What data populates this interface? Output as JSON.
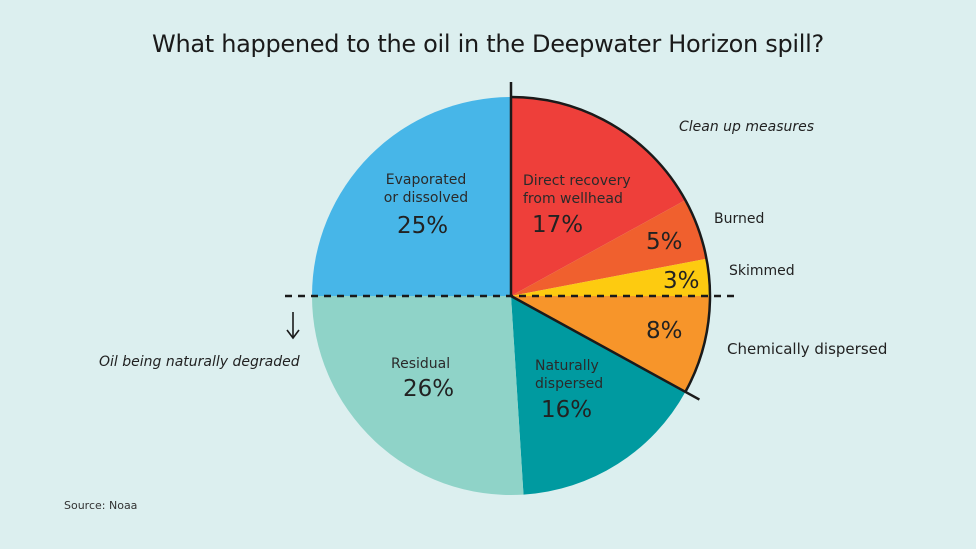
{
  "title": "What happened to the oil in the Deepwater Horizon spill?",
  "source": "Source: Noaa",
  "annotations": {
    "clean_up": "Clean up measures",
    "naturally_degraded": "Oil being naturally degraded",
    "arrow_icon": "down-arrow"
  },
  "slices": {
    "direct": {
      "label1": "Direct recovery",
      "label2": "from wellhead",
      "pct": "17%"
    },
    "burned": {
      "label": "Burned",
      "pct": "5%"
    },
    "skimmed": {
      "label": "Skimmed",
      "pct": "3%"
    },
    "chemical": {
      "label": "Chemically dispersed",
      "pct": "8%"
    },
    "natural": {
      "label1": "Naturally",
      "label2": "dispersed",
      "pct": "16%"
    },
    "residual": {
      "label": "Residual",
      "pct": "26%"
    },
    "evaporated": {
      "label1": "Evaporated",
      "label2": "or dissolved",
      "pct": "25%"
    }
  },
  "colors": {
    "background": "#dcefef",
    "direct": "#ee3f3a",
    "burned": "#f0602e",
    "skimmed": "#fdcb10",
    "chemical": "#f7952a",
    "natural": "#009aa0",
    "residual": "#8fd3c8",
    "evaporated": "#47b6e8"
  },
  "chart_data": {
    "type": "pie",
    "title": "What happened to the oil in the Deepwater Horizon spill?",
    "categories": [
      "Direct recovery from wellhead",
      "Burned",
      "Skimmed",
      "Chemically dispersed",
      "Naturally dispersed",
      "Residual",
      "Evaporated or dissolved"
    ],
    "values": [
      17,
      5,
      3,
      8,
      16,
      26,
      25
    ],
    "unit": "%",
    "groups": [
      {
        "name": "Clean up measures",
        "members": [
          "Direct recovery from wellhead",
          "Burned",
          "Skimmed",
          "Chemically dispersed"
        ]
      },
      {
        "name": "Oil being naturally degraded",
        "members": [
          "Naturally dispersed",
          "Residual"
        ]
      }
    ],
    "start_angle": "12 o'clock, clockwise",
    "source": "Noaa"
  }
}
